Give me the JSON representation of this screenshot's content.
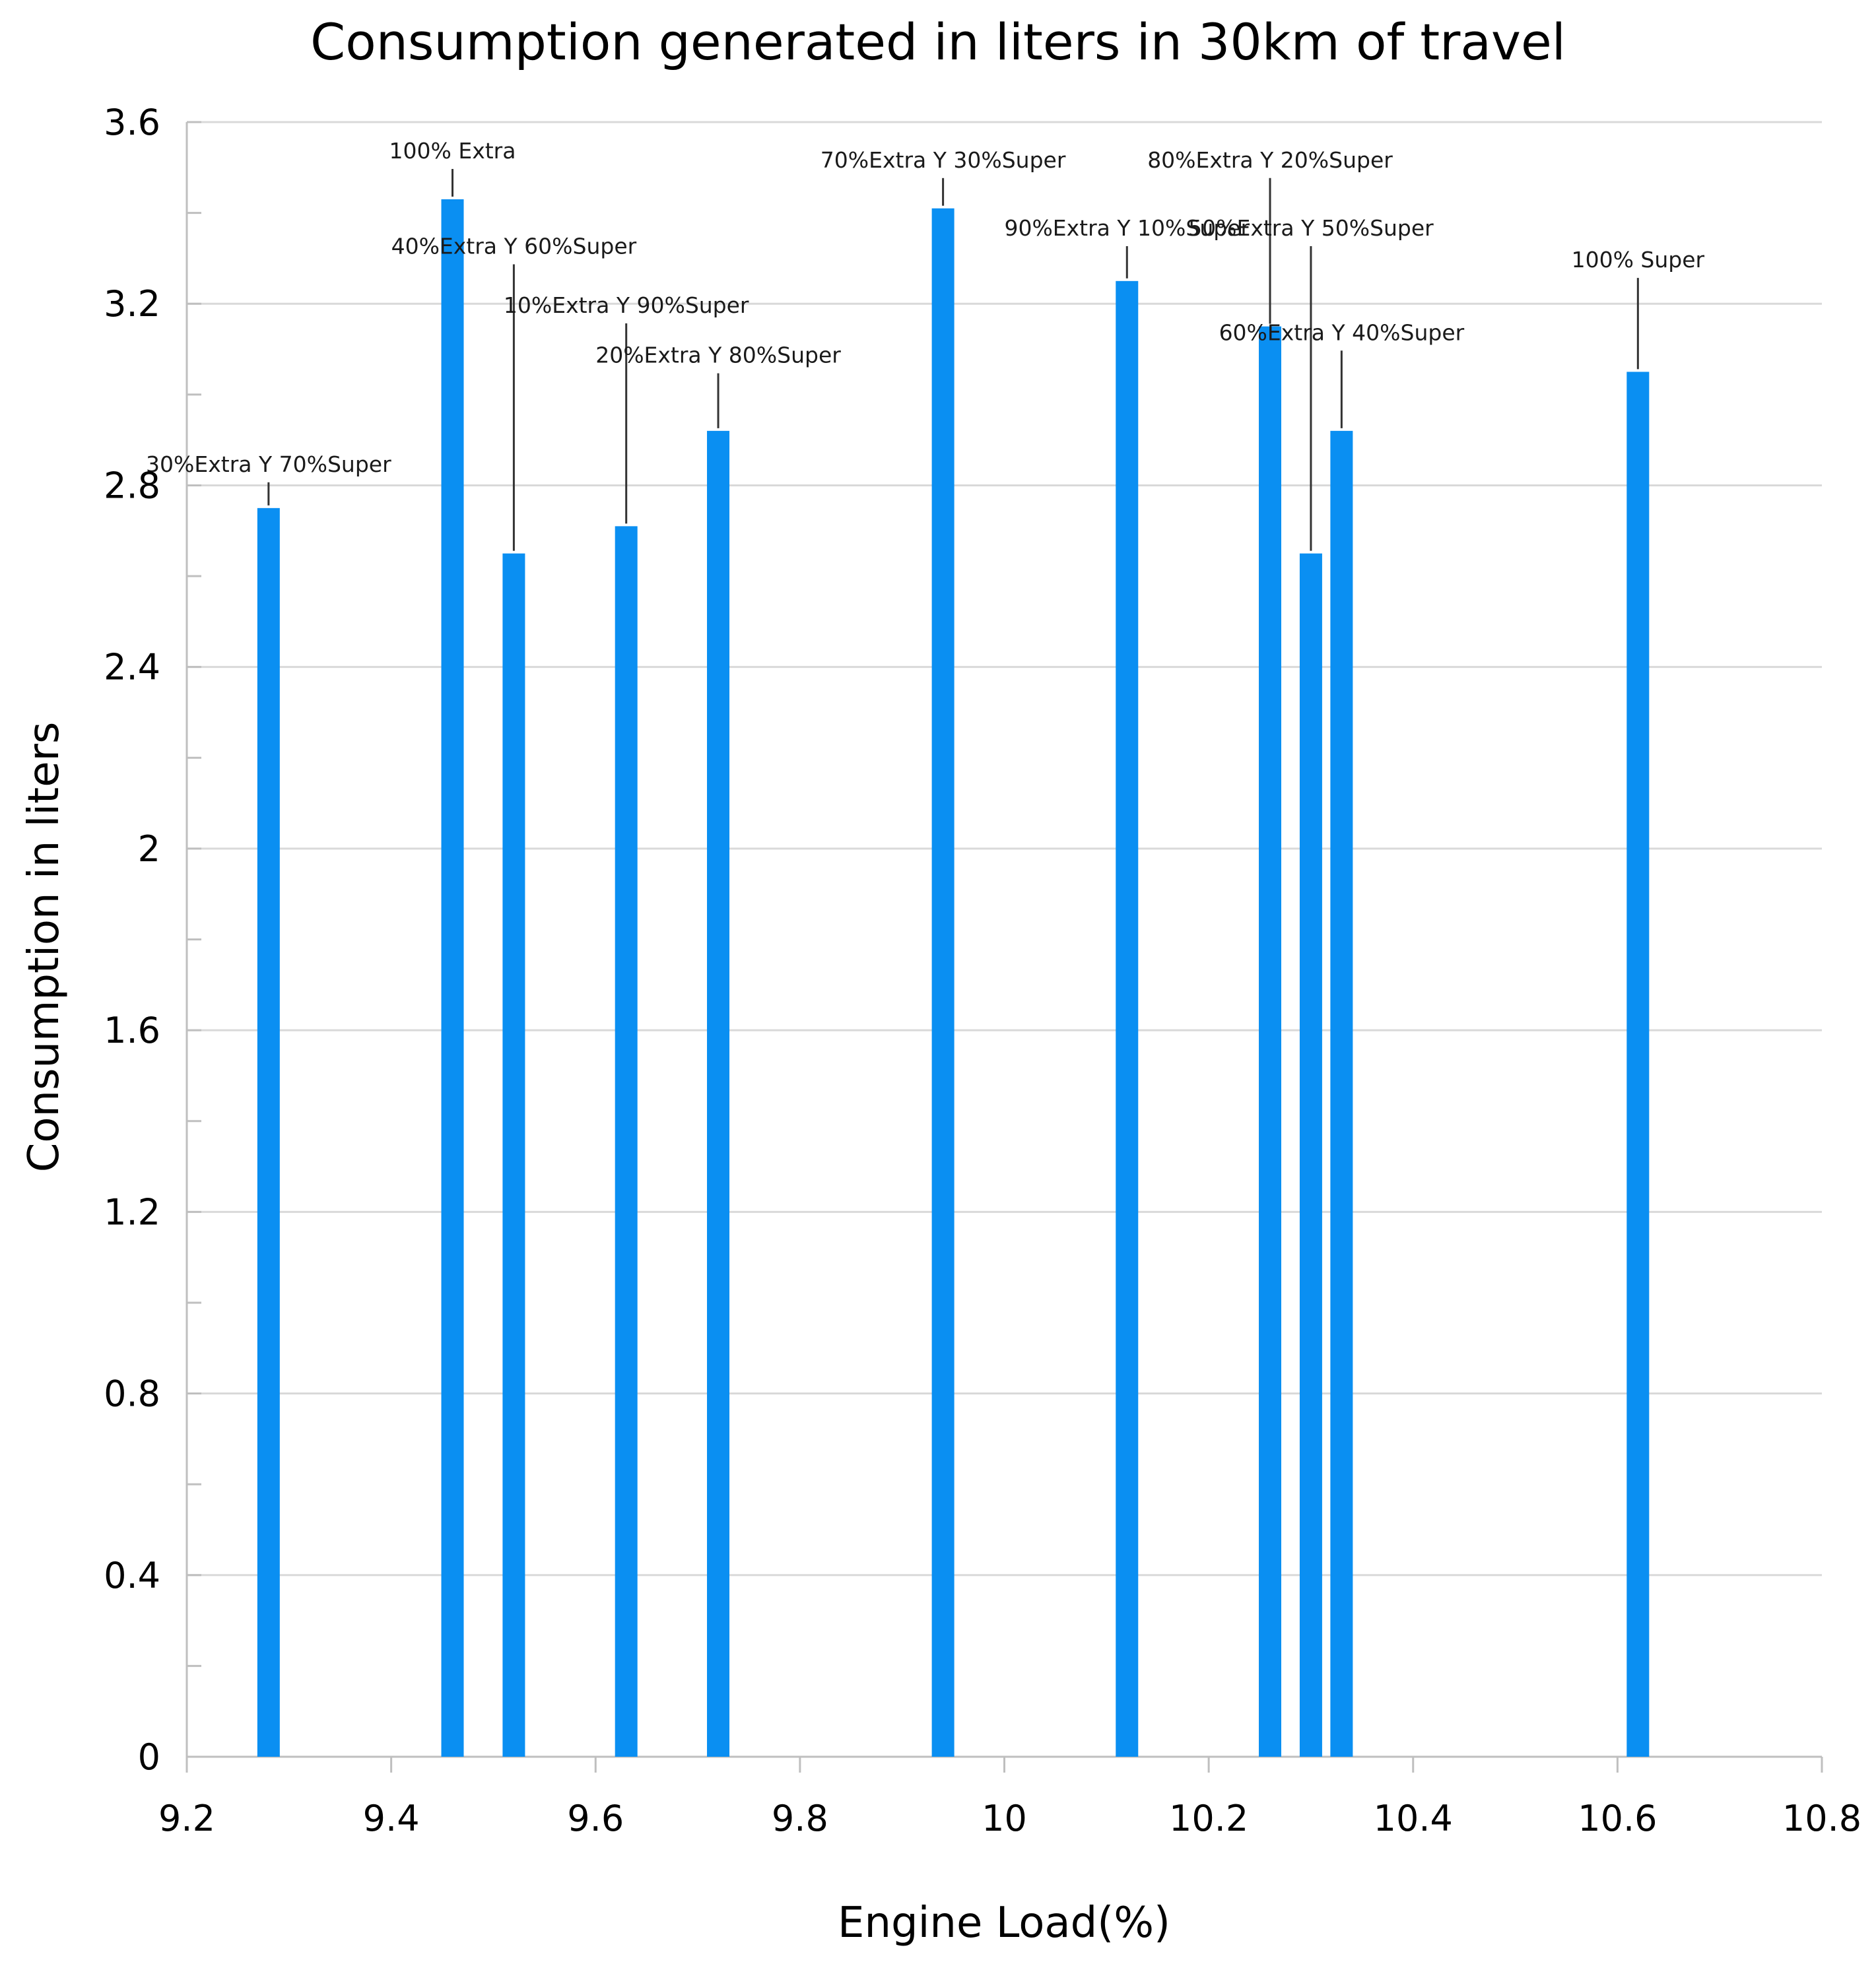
{
  "chart_data": {
    "type": "bar",
    "title": "Consumption generated in liters in 30km of travel",
    "xlabel": "Engine Load(%)",
    "ylabel": "Consumption in liters",
    "xlim": [
      9.2,
      10.8
    ],
    "ylim": [
      0,
      3.6
    ],
    "xticks": [
      9.2,
      9.4,
      9.6,
      9.8,
      10,
      10.2,
      10.4,
      10.6,
      10.8
    ],
    "xtick_labels": [
      "9.2",
      "9.4",
      "9.6",
      "9.8",
      "10",
      "10.2",
      "10.4",
      "10.6",
      "10.8"
    ],
    "yticks": [
      0,
      0.4,
      0.8,
      1.2,
      1.6,
      2,
      2.4,
      2.8,
      3.2,
      3.6
    ],
    "ytick_labels": [
      "0",
      "0.4",
      "0.8",
      "1.2",
      "1.6",
      "2",
      "2.4",
      "2.8",
      "3.2",
      "3.6"
    ],
    "grid": true,
    "bar_color": "#0a8ff2",
    "points": [
      {
        "x": 9.28,
        "y": 2.75,
        "label": "30%Extra Y 70%Super",
        "label_y": 2.83
      },
      {
        "x": 9.46,
        "y": 3.43,
        "label": "100% Extra",
        "label_y": 3.52
      },
      {
        "x": 9.52,
        "y": 2.65,
        "label": "40%Extra Y 60%Super",
        "label_y": 3.31
      },
      {
        "x": 9.63,
        "y": 2.71,
        "label": "10%Extra Y 90%Super",
        "label_y": 3.18
      },
      {
        "x": 9.72,
        "y": 2.92,
        "label": "20%Extra Y 80%Super",
        "label_y": 3.07
      },
      {
        "x": 9.94,
        "y": 3.41,
        "label": "70%Extra Y 30%Super",
        "label_y": 3.5
      },
      {
        "x": 10.12,
        "y": 3.25,
        "label": "90%Extra Y 10%Super",
        "label_y": 3.35
      },
      {
        "x": 10.26,
        "y": 3.15,
        "label": "80%Extra Y 20%Super",
        "label_y": 3.5
      },
      {
        "x": 10.3,
        "y": 2.65,
        "label": "50%Extra Y 50%Super",
        "label_y": 3.35
      },
      {
        "x": 10.33,
        "y": 2.92,
        "label": "60%Extra Y 40%Super",
        "label_y": 3.12
      },
      {
        "x": 10.62,
        "y": 3.05,
        "label": "100% Super",
        "label_y": 3.28
      }
    ]
  }
}
